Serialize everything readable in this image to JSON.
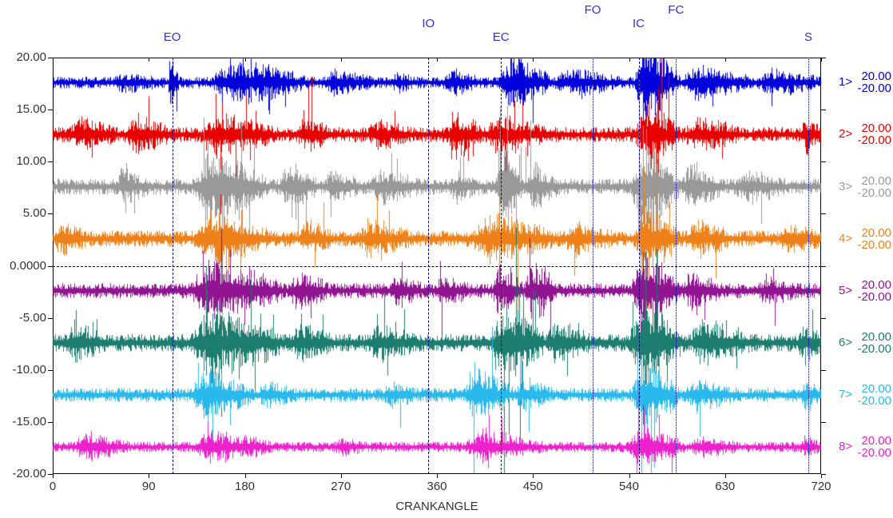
{
  "chart_data": {
    "type": "line",
    "subtype": "multichannel-oscilloscope",
    "xlabel": "CRANKANGLE",
    "x_range": [
      0,
      720
    ],
    "x_ticks": [
      0,
      90,
      180,
      270,
      360,
      450,
      540,
      630,
      720
    ],
    "y_range": [
      -20,
      20
    ],
    "y_ticks": [
      20,
      15,
      10,
      5,
      0,
      -5,
      -10,
      -15,
      -20
    ],
    "y_tick_labels": [
      "20.00",
      "15.00",
      "10.00",
      "5.00",
      "0.0000",
      "-5.00",
      "-10.00",
      "-15.00",
      "-20.00"
    ],
    "grid": "off",
    "zero_line": 0,
    "events": [
      {
        "label": "EO",
        "x": 112,
        "row": 3,
        "style": "dashdot"
      },
      {
        "label": "IO",
        "x": 352,
        "row": 2,
        "style": "dashdot"
      },
      {
        "label": "EC",
        "x": 420,
        "row": 3,
        "style": "dashdot"
      },
      {
        "label": "FO",
        "x": 506,
        "row": 1,
        "style": "dotted"
      },
      {
        "label": "IC",
        "x": 549,
        "row": 2,
        "style": "dashdot"
      },
      {
        "label": "FC",
        "x": 584,
        "row": 1,
        "style": "dotted"
      },
      {
        "label": "S",
        "x": 708,
        "row": 3,
        "style": "dotted"
      }
    ],
    "series": [
      {
        "name": "1>",
        "color": "#0000dd",
        "baseline": 17.6,
        "scale_max": "20.00",
        "scale_min": "-20.00",
        "base_noise": 0.5,
        "bursts": [
          [
            55,
            100,
            0.45
          ],
          [
            108,
            118,
            2.2
          ],
          [
            148,
            240,
            1.6
          ],
          [
            252,
            300,
            0.75
          ],
          [
            318,
            340,
            0.5
          ],
          [
            365,
            400,
            0.7
          ],
          [
            418,
            468,
            2.0
          ],
          [
            470,
            535,
            0.75
          ],
          [
            545,
            588,
            3.2
          ],
          [
            588,
            655,
            1.1
          ],
          [
            660,
            720,
            0.7
          ]
        ]
      },
      {
        "name": "2>",
        "color": "#e80000",
        "baseline": 12.6,
        "scale_max": "20.00",
        "scale_min": "-20.00",
        "base_noise": 0.65,
        "bursts": [
          [
            15,
            60,
            0.95
          ],
          [
            68,
            112,
            1.1
          ],
          [
            138,
            208,
            1.35
          ],
          [
            228,
            262,
            0.85
          ],
          [
            295,
            335,
            0.8
          ],
          [
            370,
            402,
            1.5
          ],
          [
            402,
            470,
            1.1
          ],
          [
            545,
            588,
            2.4
          ],
          [
            592,
            645,
            0.95
          ],
          [
            700,
            720,
            0.95
          ]
        ]
      },
      {
        "name": "3>",
        "color": "#999999",
        "baseline": 7.6,
        "scale_max": "20.00",
        "scale_min": "-20.00",
        "base_noise": 0.7,
        "bursts": [
          [
            58,
            90,
            0.9
          ],
          [
            132,
            202,
            2.6
          ],
          [
            212,
            248,
            1.4
          ],
          [
            255,
            285,
            1.0
          ],
          [
            298,
            345,
            0.85
          ],
          [
            372,
            400,
            0.8
          ],
          [
            415,
            440,
            3.6
          ],
          [
            440,
            475,
            1.4
          ],
          [
            542,
            588,
            3.0
          ],
          [
            588,
            628,
            1.7
          ],
          [
            640,
            688,
            0.85
          ]
        ]
      },
      {
        "name": "4>",
        "color": "#ee8119",
        "baseline": 2.6,
        "scale_max": "20.00",
        "scale_min": "-20.00",
        "base_noise": 0.7,
        "bursts": [
          [
            0,
            35,
            0.95
          ],
          [
            132,
            205,
            1.7
          ],
          [
            230,
            262,
            0.9
          ],
          [
            286,
            335,
            1.1
          ],
          [
            392,
            472,
            1.5
          ],
          [
            478,
            525,
            0.9
          ],
          [
            545,
            588,
            2.6
          ],
          [
            592,
            635,
            1.1
          ],
          [
            680,
            720,
            0.8
          ]
        ]
      },
      {
        "name": "5>",
        "color": "#911491",
        "baseline": -2.4,
        "scale_max": "20.00",
        "scale_min": "-20.00",
        "base_noise": 0.65,
        "bursts": [
          [
            128,
            218,
            2.0
          ],
          [
            222,
            258,
            1.3
          ],
          [
            315,
            348,
            0.85
          ],
          [
            358,
            390,
            0.75
          ],
          [
            412,
            442,
            1.8
          ],
          [
            442,
            472,
            2.2
          ],
          [
            542,
            588,
            3.0
          ],
          [
            590,
            625,
            1.1
          ],
          [
            660,
            700,
            0.7
          ]
        ]
      },
      {
        "name": "6>",
        "color": "#1d7d6e",
        "baseline": -7.4,
        "scale_max": "20.00",
        "scale_min": "-20.00",
        "base_noise": 0.75,
        "bursts": [
          [
            12,
            48,
            1.1
          ],
          [
            128,
            218,
            2.3
          ],
          [
            222,
            262,
            1.1
          ],
          [
            295,
            340,
            0.95
          ],
          [
            412,
            462,
            2.8
          ],
          [
            462,
            505,
            1.1
          ],
          [
            540,
            592,
            3.0
          ],
          [
            596,
            655,
            1.2
          ],
          [
            698,
            720,
            0.95
          ]
        ]
      },
      {
        "name": "7>",
        "color": "#29b9ec",
        "baseline": -12.4,
        "scale_max": "20.00",
        "scale_min": "-20.00",
        "base_noise": 0.6,
        "bursts": [
          [
            128,
            188,
            1.8
          ],
          [
            192,
            225,
            0.8
          ],
          [
            310,
            340,
            0.6
          ],
          [
            385,
            432,
            2.0
          ],
          [
            432,
            470,
            0.9
          ],
          [
            542,
            588,
            2.7
          ],
          [
            592,
            642,
            0.9
          ],
          [
            700,
            720,
            0.7
          ]
        ]
      },
      {
        "name": "8>",
        "color": "#ee22cc",
        "baseline": -17.4,
        "scale_max": "20.00",
        "scale_min": "-20.00",
        "base_noise": 0.45,
        "bursts": [
          [
            18,
            72,
            0.85
          ],
          [
            132,
            208,
            1.1
          ],
          [
            265,
            290,
            0.55
          ],
          [
            385,
            462,
            1.0
          ],
          [
            540,
            592,
            1.5
          ],
          [
            598,
            642,
            0.65
          ],
          [
            700,
            720,
            0.6
          ]
        ]
      }
    ]
  },
  "colors": {
    "background": "#ffffff",
    "axis_line": "#000000",
    "axis_text": "#333333",
    "event_line": "#00008b",
    "event_label": "#3333cc",
    "zero_line": "#000000"
  }
}
